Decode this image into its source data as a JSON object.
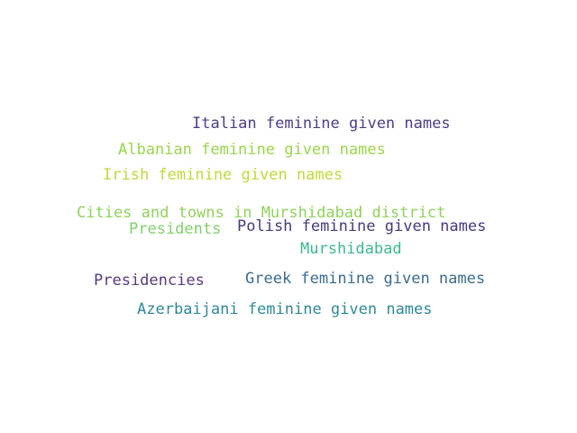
{
  "words": [
    {
      "text": "Italian feminine given names",
      "color": "#4b3f8a"
    },
    {
      "text": "Albanian feminine given names",
      "color": "#9ad64a"
    },
    {
      "text": "Irish feminine given names",
      "color": "#c3d83a"
    },
    {
      "text": "Cities and towns in Murshidabad district",
      "color": "#8fd35a"
    },
    {
      "text": "Presidents",
      "color": "#7fd168"
    },
    {
      "text": "Polish feminine given names",
      "color": "#463a7f"
    },
    {
      "text": "Murshidabad",
      "color": "#3bb98a"
    },
    {
      "text": "Presidencies",
      "color": "#573a7e"
    },
    {
      "text": "Greek feminine given names",
      "color": "#3a6c8f"
    },
    {
      "text": "Azerbaijani feminine given names",
      "color": "#2f8a98"
    }
  ]
}
